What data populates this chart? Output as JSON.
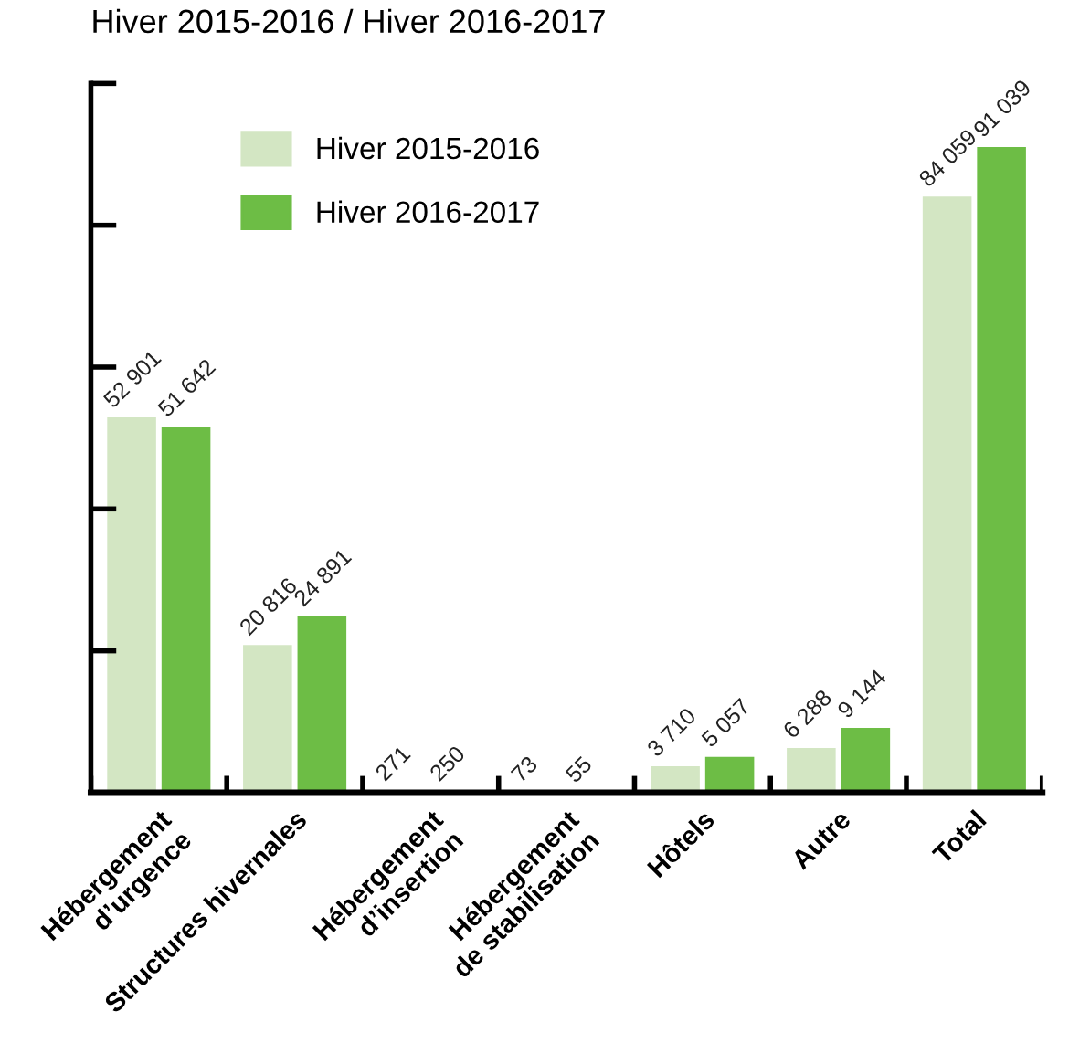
{
  "chart_data": {
    "type": "bar",
    "title": "Hiver 2015-2016 / Hiver 2016-2017",
    "categories": [
      "Hébergement\nd’urgence",
      "Structures hivernales",
      "Hébergement\nd’insertion",
      "Hébergement\nde stabilisation",
      "Hôtels",
      "Autre",
      "Total"
    ],
    "series": [
      {
        "name": "Hiver 2015-2016",
        "color": "#d3e6c3",
        "values": [
          52901,
          20816,
          271,
          73,
          3710,
          6288,
          84059
        ],
        "value_labels": [
          "52 901",
          "20 816",
          "271",
          "73",
          "3 710",
          "6 288",
          "84 059"
        ]
      },
      {
        "name": "Hiver 2016-2017",
        "color": "#6dbd45",
        "values": [
          51642,
          24891,
          250,
          55,
          5057,
          9144,
          91039
        ],
        "value_labels": [
          "51 642",
          "24 891",
          "250",
          "55",
          "5 057",
          "9 144",
          "91 039"
        ]
      }
    ],
    "ylim": [
      0,
      100000
    ],
    "yticks": [
      {
        "value": 0,
        "label": null
      },
      {
        "value": 20000,
        "label": null
      },
      {
        "value": 40000,
        "label": null
      },
      {
        "value": 60000,
        "label": null
      },
      {
        "value": 80000,
        "label": null
      },
      {
        "value": 100000,
        "label": null
      }
    ],
    "tick_labels": "x",
    "grid": false,
    "legend": "top left"
  }
}
